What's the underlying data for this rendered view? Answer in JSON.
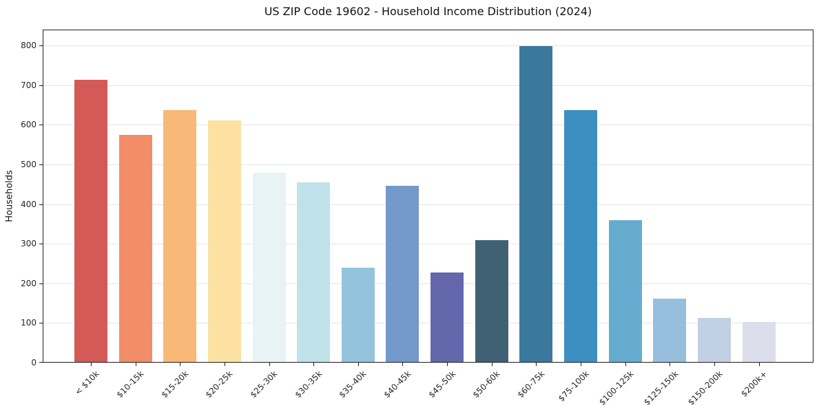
{
  "chart_data": {
    "type": "bar",
    "title": "US ZIP Code 19602 - Household Income Distribution (2024)",
    "xlabel": "",
    "ylabel": "Households",
    "categories": [
      "< $10k",
      "$10-15k",
      "$15-20k",
      "$20-25k",
      "$25-30k",
      "$30-35k",
      "$35-40k",
      "$40-45k",
      "$45-50k",
      "$50-60k",
      "$60-75k",
      "$75-100k",
      "$100-125k",
      "$125-150k",
      "$150-200k",
      "$200k+"
    ],
    "values": [
      712,
      573,
      635,
      610,
      477,
      453,
      238,
      445,
      225,
      307,
      796,
      635,
      358,
      160,
      111,
      101
    ],
    "bar_colors": [
      "#d2514e",
      "#f0875f",
      "#f9b470",
      "#fcdf9e",
      "#e6f2f4",
      "#bcdfe9",
      "#8ec0dc",
      "#6b93c8",
      "#5b60a8",
      "#36596b",
      "#2f7298",
      "#3389be",
      "#5ea6ce",
      "#92badb",
      "#becde3",
      "#dadceb"
    ],
    "ylim": [
      0,
      840
    ],
    "yticks": [
      0,
      100,
      200,
      300,
      400,
      500,
      600,
      700,
      800
    ],
    "grid": "horizontal-light",
    "legend": "none"
  },
  "colors": {
    "background": "#ffffff",
    "grid": "#e5e5ea",
    "spine": "#1c1c1c",
    "tick_label": "#262626",
    "title_text": "#111111"
  }
}
